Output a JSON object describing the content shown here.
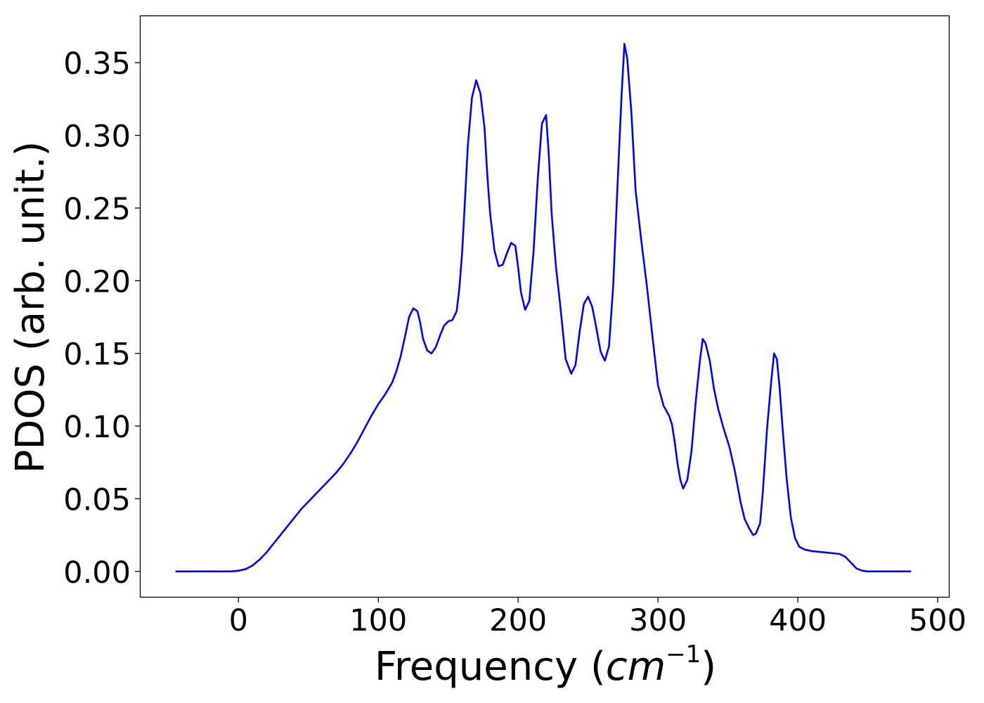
{
  "chart_data": {
    "type": "line",
    "title": "",
    "xlabel_text": "Frequency (",
    "xlabel_math": "cm",
    "xlabel_sup": "−1",
    "xlabel_close": ")",
    "ylabel": "PDOS (arb. unit.)",
    "xlim": [
      -70,
      508
    ],
    "ylim": [
      -0.0175,
      0.382
    ],
    "xticks": [
      0,
      100,
      200,
      300,
      400,
      500
    ],
    "xtick_labels": [
      "0",
      "100",
      "200",
      "300",
      "400",
      "500"
    ],
    "yticks": [
      0.0,
      0.05,
      0.1,
      0.15,
      0.2,
      0.25,
      0.3,
      0.35
    ],
    "ytick_labels": [
      "0.00",
      "0.05",
      "0.10",
      "0.15",
      "0.20",
      "0.25",
      "0.30",
      "0.35"
    ],
    "grid": false,
    "legend": "none",
    "series": [
      {
        "color": "#0000ff",
        "x": [
          -45,
          -30,
          -15,
          -5,
          0,
          5,
          10,
          15,
          20,
          25,
          30,
          35,
          40,
          45,
          50,
          55,
          60,
          65,
          70,
          75,
          80,
          85,
          90,
          95,
          100,
          105,
          110,
          113,
          116,
          119,
          122,
          125,
          128,
          130,
          132,
          135,
          138,
          141,
          144,
          147,
          150,
          153,
          156,
          158,
          160,
          162,
          164,
          167,
          170,
          173,
          176,
          178,
          180,
          183,
          186,
          189,
          192,
          195,
          198,
          200,
          202,
          205,
          208,
          211,
          214,
          217,
          220,
          222,
          224,
          227,
          230,
          234,
          238,
          241,
          244,
          247,
          250,
          253,
          256,
          259,
          262,
          265,
          268,
          271,
          274,
          276,
          278,
          281,
          284,
          288,
          292,
          296,
          300,
          304,
          308,
          310,
          312,
          314,
          316,
          318,
          321,
          324,
          327,
          330,
          332,
          334,
          337,
          340,
          343,
          347,
          351,
          355,
          359,
          362,
          365,
          368,
          370,
          373,
          375,
          378,
          381,
          383,
          385,
          387,
          389,
          392,
          395,
          398,
          401,
          405,
          410,
          420,
          430,
          434,
          438,
          442,
          446,
          450,
          460,
          470,
          481
        ],
        "y": [
          0.0,
          0.0,
          0.0,
          0.0,
          0.0005,
          0.0015,
          0.004,
          0.008,
          0.013,
          0.019,
          0.025,
          0.031,
          0.037,
          0.043,
          0.048,
          0.053,
          0.058,
          0.063,
          0.068,
          0.074,
          0.081,
          0.089,
          0.098,
          0.107,
          0.115,
          0.122,
          0.13,
          0.138,
          0.148,
          0.161,
          0.175,
          0.181,
          0.179,
          0.171,
          0.16,
          0.152,
          0.15,
          0.154,
          0.162,
          0.169,
          0.172,
          0.173,
          0.179,
          0.195,
          0.22,
          0.256,
          0.293,
          0.326,
          0.338,
          0.329,
          0.305,
          0.272,
          0.246,
          0.221,
          0.21,
          0.211,
          0.219,
          0.226,
          0.224,
          0.209,
          0.192,
          0.18,
          0.186,
          0.22,
          0.27,
          0.308,
          0.314,
          0.285,
          0.246,
          0.21,
          0.184,
          0.146,
          0.136,
          0.142,
          0.165,
          0.184,
          0.189,
          0.182,
          0.167,
          0.151,
          0.145,
          0.155,
          0.197,
          0.265,
          0.328,
          0.363,
          0.353,
          0.315,
          0.262,
          0.228,
          0.197,
          0.162,
          0.128,
          0.114,
          0.107,
          0.101,
          0.089,
          0.074,
          0.063,
          0.057,
          0.063,
          0.083,
          0.117,
          0.145,
          0.16,
          0.157,
          0.145,
          0.126,
          0.112,
          0.098,
          0.086,
          0.069,
          0.048,
          0.036,
          0.03,
          0.025,
          0.026,
          0.033,
          0.055,
          0.098,
          0.131,
          0.15,
          0.146,
          0.126,
          0.1,
          0.064,
          0.037,
          0.023,
          0.017,
          0.015,
          0.014,
          0.013,
          0.012,
          0.01,
          0.006,
          0.002,
          0.0005,
          0.0,
          0.0,
          0.0,
          0.0
        ]
      }
    ]
  }
}
